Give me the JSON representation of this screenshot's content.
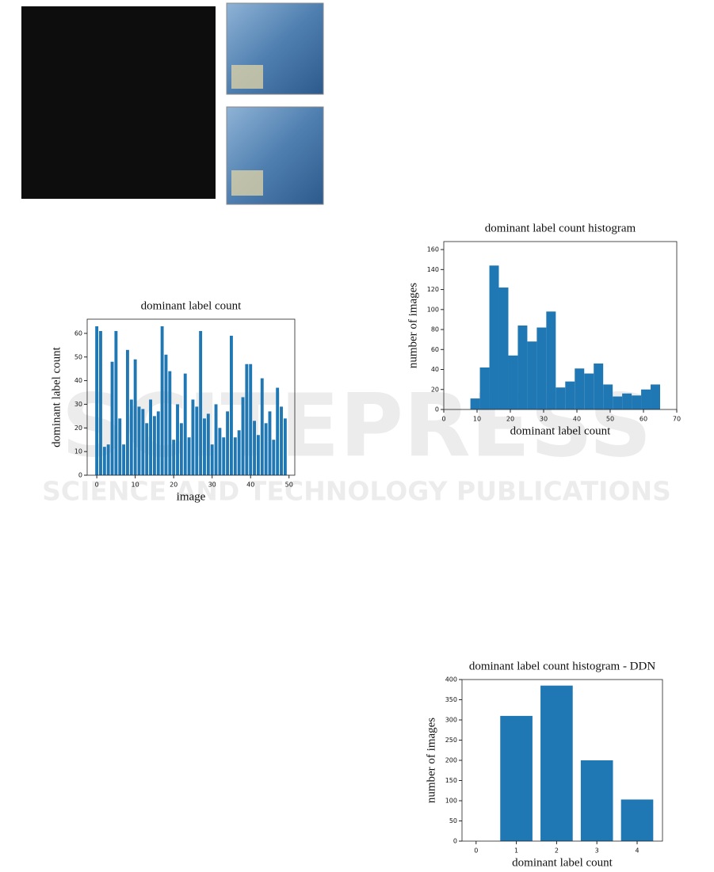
{
  "watermark": {
    "brand": "SCITEPRESS",
    "tagline": "SCIENCE AND TECHNOLOGY PUBLICATIONS"
  },
  "chart_data": [
    {
      "type": "bar",
      "title": "dominant label count",
      "x_label": "image",
      "y_label": "dominant label count",
      "color": "#1f77b4",
      "x": [
        0,
        1,
        2,
        3,
        4,
        5,
        6,
        7,
        8,
        9,
        10,
        11,
        12,
        13,
        14,
        15,
        16,
        17,
        18,
        19,
        20,
        21,
        22,
        23,
        24,
        25,
        26,
        27,
        28,
        29,
        30,
        31,
        32,
        33,
        34,
        35,
        36,
        37,
        38,
        39,
        40,
        41,
        42,
        43,
        44,
        45,
        46,
        47,
        48,
        49
      ],
      "values": [
        63,
        61,
        12,
        13,
        48,
        61,
        24,
        13,
        53,
        32,
        49,
        29,
        28,
        22,
        32,
        25,
        27,
        63,
        51,
        44,
        15,
        30,
        22,
        43,
        16,
        32,
        29,
        61,
        24,
        26,
        13,
        30,
        20,
        16,
        27,
        59,
        16,
        19,
        33,
        47,
        47,
        23,
        17,
        41,
        22,
        27,
        15,
        37,
        29,
        24
      ],
      "xlim": [
        -2.5,
        51.5
      ],
      "xticks": [
        0,
        10,
        20,
        30,
        40,
        50
      ],
      "ylim": [
        0,
        66
      ],
      "yticks": [
        0,
        10,
        20,
        30,
        40,
        50,
        60
      ]
    },
    {
      "type": "histogram",
      "title": "dominant label count histogram",
      "x_label": "dominant label count",
      "y_label": "number of images",
      "color": "#1f77b4",
      "bins": [
        8.0,
        10.85,
        13.7,
        16.55,
        19.4,
        22.25,
        25.1,
        27.95,
        30.8,
        33.65,
        36.5,
        39.35,
        42.2,
        45.05,
        47.9,
        50.75,
        53.6,
        56.45,
        59.3,
        62.15,
        65.0
      ],
      "values": [
        11,
        42,
        144,
        122,
        54,
        84,
        68,
        82,
        98,
        22,
        28,
        41,
        36,
        46,
        25,
        13,
        16,
        14,
        20,
        25
      ],
      "xlim": [
        0,
        70
      ],
      "xticks": [
        0,
        10,
        20,
        30,
        40,
        50,
        60,
        70
      ],
      "ylim": [
        0,
        168
      ],
      "yticks": [
        0,
        20,
        40,
        60,
        80,
        100,
        120,
        140,
        160
      ]
    },
    {
      "type": "bar",
      "title": "dominant label count histogram - DDN",
      "x_label": "dominant label count",
      "y_label": "number of images",
      "color": "#1f77b4",
      "x": [
        0,
        1,
        2,
        3,
        4
      ],
      "values": [
        0,
        310,
        385,
        200,
        103
      ],
      "xlim": [
        -0.35,
        4.63
      ],
      "xticks": [
        0,
        1,
        2,
        3,
        4
      ],
      "ylim": [
        0,
        400
      ],
      "yticks": [
        0,
        50,
        100,
        150,
        200,
        250,
        300,
        350,
        400
      ]
    }
  ]
}
